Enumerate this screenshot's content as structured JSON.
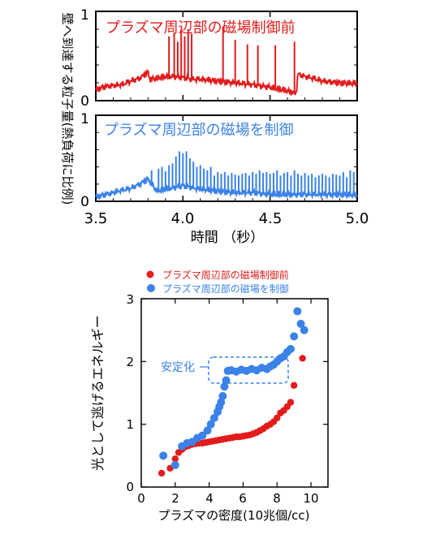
{
  "top_panels": {
    "ylabel": "壁へ到達する粒子量(熱負荷に比例)",
    "xlabel": "時間 （秒）"
  },
  "bottom_chart": {
    "annotation": "安定化"
  },
  "colors": {
    "red": "#e31b1b",
    "blue": "#3a82e8"
  },
  "chart_data": [
    {
      "type": "line",
      "title": "プラズマ周辺部の磁場制御前",
      "xlim": [
        3.5,
        5.0
      ],
      "ylim": [
        0,
        1
      ],
      "xticks": [
        3.5,
        4.0,
        4.5,
        5.0
      ],
      "xtick_labels": [
        "3.5",
        "4.0",
        "4.5",
        "5.0"
      ],
      "yticks": [
        0,
        1
      ],
      "ytick_labels": [
        "0",
        "1"
      ],
      "series": [
        {
          "color": "#e31b1b",
          "baseline": [
            [
              3.5,
              0.12
            ],
            [
              3.55,
              0.16
            ],
            [
              3.6,
              0.17
            ],
            [
              3.65,
              0.18
            ],
            [
              3.7,
              0.22
            ],
            [
              3.75,
              0.25
            ],
            [
              3.8,
              0.32
            ],
            [
              3.81,
              0.24
            ],
            [
              3.85,
              0.25
            ],
            [
              3.9,
              0.27
            ],
            [
              3.95,
              0.27
            ],
            [
              4.0,
              0.26
            ],
            [
              4.05,
              0.24
            ],
            [
              4.1,
              0.24
            ],
            [
              4.15,
              0.23
            ],
            [
              4.2,
              0.22
            ],
            [
              4.3,
              0.2
            ],
            [
              4.4,
              0.18
            ],
            [
              4.5,
              0.15
            ],
            [
              4.6,
              0.11
            ],
            [
              4.65,
              0.08
            ],
            [
              4.66,
              0.3
            ],
            [
              4.7,
              0.27
            ],
            [
              4.75,
              0.25
            ],
            [
              4.8,
              0.22
            ],
            [
              4.9,
              0.2
            ],
            [
              5.0,
              0.19
            ]
          ],
          "spikes": [
            [
              3.92,
              0.72
            ],
            [
              3.95,
              0.75
            ],
            [
              3.97,
              0.66
            ],
            [
              3.99,
              0.8
            ],
            [
              4.01,
              0.72
            ],
            [
              4.03,
              0.8
            ],
            [
              4.05,
              0.75
            ],
            [
              4.23,
              0.83
            ],
            [
              4.3,
              0.68
            ],
            [
              4.37,
              0.63
            ],
            [
              4.43,
              0.62
            ],
            [
              4.53,
              0.62
            ],
            [
              4.64,
              0.66
            ]
          ]
        }
      ]
    },
    {
      "type": "line",
      "title": "プラズマ周辺部の磁場を制御",
      "xlim": [
        3.5,
        5.0
      ],
      "ylim": [
        0,
        1
      ],
      "xticks": [
        3.5,
        4.0,
        4.5,
        5.0
      ],
      "xtick_labels": [
        "3.5",
        "4.0",
        "4.5",
        "5.0"
      ],
      "yticks": [
        0,
        1
      ],
      "ytick_labels": [
        "0",
        "1"
      ],
      "series": [
        {
          "color": "#3a82e8",
          "baseline": [
            [
              3.5,
              0.05
            ],
            [
              3.55,
              0.08
            ],
            [
              3.6,
              0.1
            ],
            [
              3.65,
              0.13
            ],
            [
              3.7,
              0.15
            ],
            [
              3.75,
              0.2
            ],
            [
              3.8,
              0.26
            ],
            [
              3.85,
              0.12
            ],
            [
              3.9,
              0.14
            ],
            [
              3.95,
              0.16
            ],
            [
              4.0,
              0.18
            ],
            [
              4.05,
              0.16
            ],
            [
              4.1,
              0.14
            ],
            [
              4.2,
              0.12
            ],
            [
              4.3,
              0.1
            ],
            [
              4.4,
              0.1
            ],
            [
              4.5,
              0.08
            ],
            [
              4.6,
              0.08
            ],
            [
              4.7,
              0.08
            ],
            [
              4.8,
              0.08
            ],
            [
              4.9,
              0.08
            ],
            [
              5.0,
              0.07
            ]
          ],
          "spikes": [
            [
              3.82,
              0.36
            ],
            [
              3.86,
              0.38
            ],
            [
              3.88,
              0.4
            ],
            [
              3.9,
              0.35
            ],
            [
              3.92,
              0.42
            ],
            [
              3.94,
              0.44
            ],
            [
              3.96,
              0.52
            ],
            [
              3.98,
              0.58
            ],
            [
              4.0,
              0.56
            ],
            [
              4.02,
              0.58
            ],
            [
              4.04,
              0.5
            ],
            [
              4.06,
              0.46
            ],
            [
              4.08,
              0.4
            ],
            [
              4.1,
              0.42
            ],
            [
              4.12,
              0.38
            ],
            [
              4.14,
              0.36
            ],
            [
              4.16,
              0.4
            ],
            [
              4.18,
              0.3
            ],
            [
              4.2,
              0.34
            ],
            [
              4.22,
              0.32
            ],
            [
              4.24,
              0.34
            ],
            [
              4.26,
              0.3
            ],
            [
              4.28,
              0.33
            ],
            [
              4.3,
              0.31
            ],
            [
              4.32,
              0.3
            ],
            [
              4.34,
              0.32
            ],
            [
              4.36,
              0.33
            ],
            [
              4.38,
              0.3
            ],
            [
              4.4,
              0.34
            ],
            [
              4.42,
              0.32
            ],
            [
              4.44,
              0.36
            ],
            [
              4.46,
              0.33
            ],
            [
              4.48,
              0.34
            ],
            [
              4.5,
              0.32
            ],
            [
              4.52,
              0.33
            ],
            [
              4.54,
              0.36
            ],
            [
              4.56,
              0.3
            ],
            [
              4.58,
              0.33
            ],
            [
              4.6,
              0.34
            ],
            [
              4.62,
              0.3
            ],
            [
              4.64,
              0.36
            ],
            [
              4.66,
              0.32
            ],
            [
              4.68,
              0.3
            ],
            [
              4.7,
              0.33
            ],
            [
              4.72,
              0.3
            ],
            [
              4.74,
              0.32
            ],
            [
              4.76,
              0.28
            ],
            [
              4.78,
              0.3
            ],
            [
              4.8,
              0.32
            ],
            [
              4.82,
              0.3
            ],
            [
              4.84,
              0.28
            ],
            [
              4.86,
              0.32
            ],
            [
              4.88,
              0.31
            ],
            [
              4.9,
              0.3
            ],
            [
              4.92,
              0.34
            ],
            [
              4.94,
              0.28
            ],
            [
              4.96,
              0.36
            ],
            [
              4.98,
              0.34
            ]
          ]
        }
      ]
    },
    {
      "type": "scatter",
      "xlabel": "プラズマの密度(10兆個/cc)",
      "ylabel": "光として逃げるエネルギー",
      "xlim": [
        0,
        11
      ],
      "ylim": [
        0,
        3
      ],
      "xticks": [
        0,
        2,
        4,
        6,
        8,
        10
      ],
      "xtick_labels": [
        "0",
        "2",
        "4",
        "6",
        "8",
        "10"
      ],
      "yticks": [
        0,
        1,
        2,
        3
      ],
      "ytick_labels": [
        "0",
        "1",
        "2",
        "3"
      ],
      "legend_position": "top",
      "series": [
        {
          "name": "プラズマ周辺部の磁場制御前",
          "color": "#e31b1b",
          "x": [
            1.2,
            1.7,
            2.0,
            2.2,
            2.4,
            2.6,
            2.8,
            3.0,
            3.2,
            3.4,
            3.6,
            3.8,
            4.0,
            4.2,
            4.4,
            4.6,
            4.8,
            5.0,
            5.2,
            5.4,
            5.6,
            5.8,
            6.0,
            6.2,
            6.4,
            6.6,
            6.8,
            7.0,
            7.2,
            7.4,
            7.6,
            7.8,
            8.0,
            8.2,
            8.4,
            8.6,
            8.8,
            9.0,
            9.5
          ],
          "y": [
            0.22,
            0.3,
            0.45,
            0.55,
            0.6,
            0.64,
            0.66,
            0.68,
            0.69,
            0.7,
            0.7,
            0.71,
            0.72,
            0.73,
            0.74,
            0.75,
            0.76,
            0.77,
            0.78,
            0.79,
            0.8,
            0.8,
            0.81,
            0.82,
            0.83,
            0.85,
            0.87,
            0.9,
            0.93,
            0.97,
            1.0,
            1.04,
            1.1,
            1.18,
            1.22,
            1.28,
            1.35,
            1.62,
            2.05
          ]
        },
        {
          "name": "プラズマ周辺部の磁場を制御",
          "color": "#3a82e8",
          "x": [
            1.3,
            2.0,
            2.4,
            2.7,
            3.0,
            3.3,
            3.6,
            3.9,
            4.1,
            4.3,
            4.5,
            4.6,
            4.7,
            4.8,
            4.9,
            5.0,
            5.1,
            5.3,
            5.6,
            5.9,
            6.2,
            6.5,
            6.8,
            7.1,
            7.4,
            7.6,
            7.8,
            8.0,
            8.2,
            8.4,
            8.6,
            8.8,
            9.0,
            9.2,
            9.4,
            9.6
          ],
          "y": [
            0.5,
            0.35,
            0.65,
            0.7,
            0.72,
            0.78,
            0.82,
            0.9,
            1.0,
            1.1,
            1.2,
            1.28,
            1.35,
            1.45,
            1.6,
            1.7,
            1.85,
            1.86,
            1.84,
            1.87,
            1.85,
            1.88,
            1.86,
            1.9,
            1.88,
            1.92,
            1.95,
            2.0,
            2.05,
            2.08,
            2.15,
            2.2,
            2.4,
            2.8,
            2.6,
            2.5
          ]
        }
      ]
    }
  ]
}
